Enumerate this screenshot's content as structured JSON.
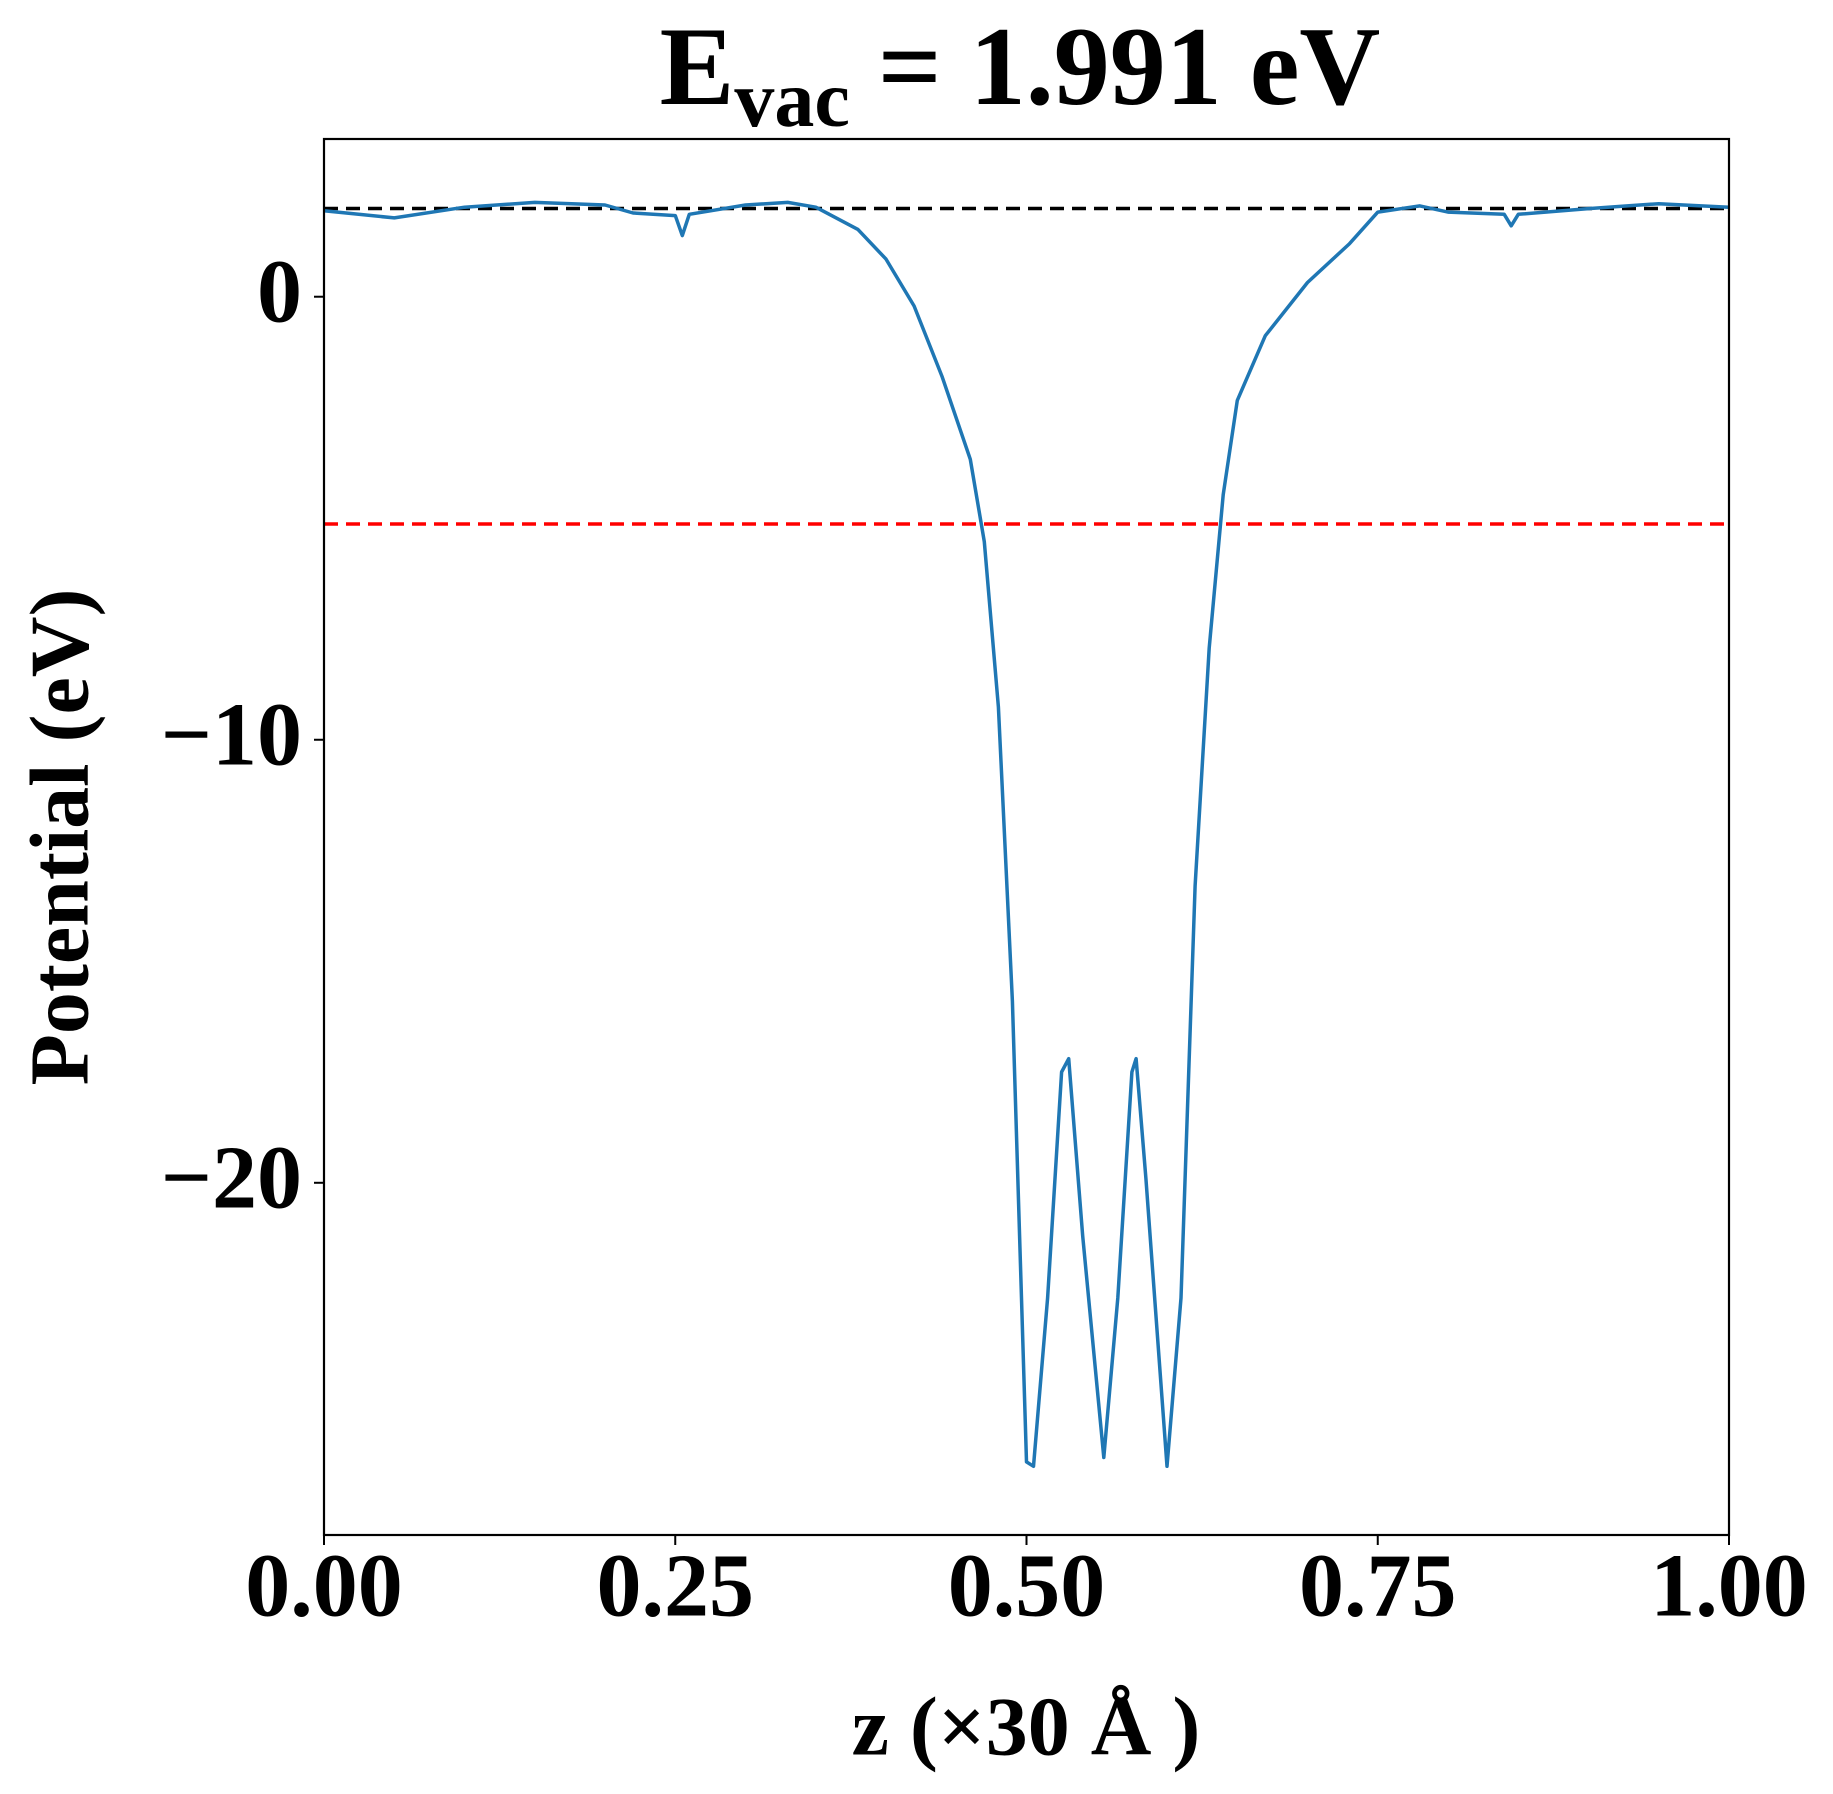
{
  "chart_data": {
    "type": "line",
    "title": {
      "main": "E",
      "sub": "vac",
      "rest": " = 1.991 eV"
    },
    "x_label": "z (×30 Å )",
    "y_label": "Potential (eV)",
    "xlim": [
      0,
      1
    ],
    "ylim": [
      -27.95,
      3.56
    ],
    "xticks": [
      {
        "value": 0,
        "label": "0.00"
      },
      {
        "value": 0.25,
        "label": "0.25"
      },
      {
        "value": 0.5,
        "label": "0.50"
      },
      {
        "value": 0.75,
        "label": "0.75"
      },
      {
        "value": 1,
        "label": "1.00"
      }
    ],
    "yticks": [
      {
        "value": 0,
        "label": "0"
      },
      {
        "value": -10,
        "label": "−10"
      },
      {
        "value": -20,
        "label": "−20"
      }
    ],
    "hlines": [
      {
        "y": 1.991,
        "color": "#000000"
      },
      {
        "y": -5.13,
        "color": "#ff0000"
      }
    ],
    "series": [
      {
        "color": "#1f77b4",
        "x": [
          0,
          0.05,
          0.1,
          0.15,
          0.2,
          0.22,
          0.25,
          0.255,
          0.26,
          0.3,
          0.33,
          0.35,
          0.38,
          0.4,
          0.42,
          0.44,
          0.46,
          0.47,
          0.48,
          0.49,
          0.5,
          0.505,
          0.515,
          0.525,
          0.53,
          0.54,
          0.555,
          0.565,
          0.575,
          0.578,
          0.585,
          0.6,
          0.61,
          0.62,
          0.63,
          0.64,
          0.65,
          0.67,
          0.7,
          0.73,
          0.75,
          0.78,
          0.8,
          0.84,
          0.845,
          0.85,
          0.9,
          0.95,
          1.0
        ],
        "values": [
          1.94,
          1.78,
          2.02,
          2.13,
          2.07,
          1.89,
          1.83,
          1.38,
          1.86,
          2.07,
          2.13,
          2.02,
          1.52,
          0.85,
          -0.21,
          -1.81,
          -3.67,
          -5.53,
          -9.26,
          -15.9,
          -26.3,
          -26.4,
          -22.6,
          -17.5,
          -17.2,
          -21.2,
          -26.2,
          -22.6,
          -17.5,
          -17.2,
          -19.9,
          -26.4,
          -22.6,
          -13.3,
          -7.93,
          -4.47,
          -2.34,
          -0.88,
          0.32,
          1.2,
          1.91,
          2.05,
          1.91,
          1.86,
          1.6,
          1.86,
          1.99,
          2.1,
          2.02
        ]
      }
    ]
  }
}
